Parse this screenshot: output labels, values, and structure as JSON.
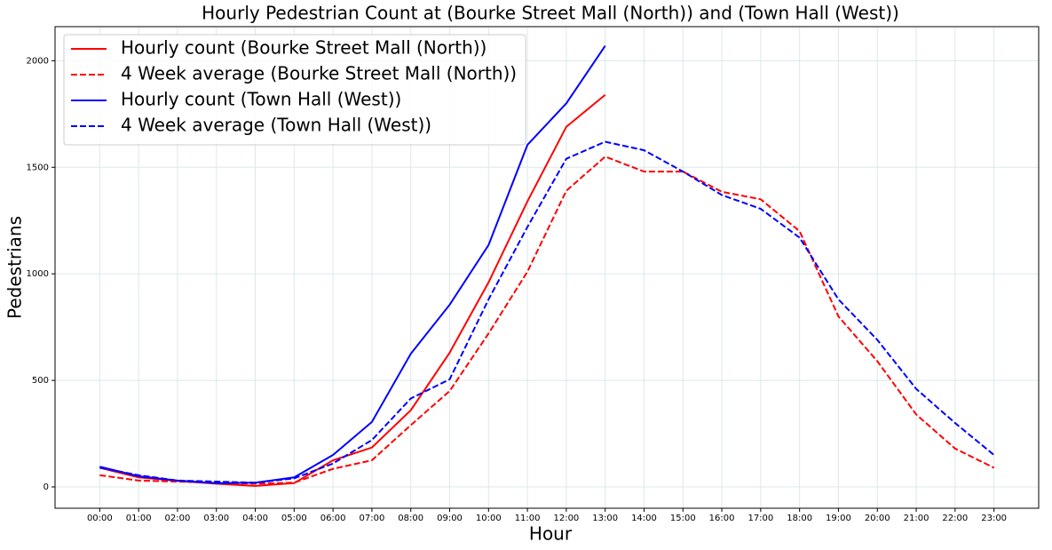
{
  "chart_data": {
    "type": "line",
    "title": "Hourly Pedestrian Count at (Bourke Street Mall (North)) and (Town Hall (West))",
    "x_label": "Hour",
    "y_label": "Pedestrians",
    "categories": [
      "00:00",
      "01:00",
      "02:00",
      "03:00",
      "04:00",
      "05:00",
      "06:00",
      "07:00",
      "08:00",
      "09:00",
      "10:00",
      "11:00",
      "12:00",
      "13:00",
      "14:00",
      "15:00",
      "16:00",
      "17:00",
      "18:00",
      "19:00",
      "20:00",
      "21:00",
      "22:00",
      "23:00"
    ],
    "series": [
      {
        "name": "Hourly count (Bourke Street Mall (North))",
        "color": "#ff0000",
        "dash": false,
        "values": [
          90,
          45,
          28,
          15,
          5,
          18,
          125,
          185,
          360,
          630,
          960,
          1340,
          1690,
          1840,
          null,
          null,
          null,
          null,
          null,
          null,
          null,
          null,
          null,
          null
        ]
      },
      {
        "name": "4 Week average (Bourke Street Mall (North))",
        "color": "#ff0000",
        "dash": true,
        "values": [
          55,
          30,
          25,
          20,
          15,
          20,
          85,
          125,
          290,
          450,
          720,
          1010,
          1390,
          1550,
          1480,
          1480,
          1385,
          1350,
          1200,
          800,
          590,
          340,
          180,
          90
        ]
      },
      {
        "name": "Hourly count (Town Hall (West))",
        "color": "#0000ff",
        "dash": false,
        "values": [
          95,
          50,
          30,
          18,
          20,
          45,
          150,
          305,
          625,
          855,
          1135,
          1605,
          1800,
          2070,
          null,
          null,
          null,
          null,
          null,
          null,
          null,
          null,
          null,
          null
        ]
      },
      {
        "name": "4 Week average (Town Hall (West))",
        "color": "#0000ff",
        "dash": true,
        "values": [
          90,
          55,
          30,
          25,
          20,
          40,
          110,
          220,
          415,
          505,
          880,
          1220,
          1540,
          1620,
          1580,
          1480,
          1370,
          1305,
          1170,
          880,
          690,
          460,
          300,
          150
        ]
      }
    ],
    "ylim": [
      -100,
      2160
    ],
    "yticks": [
      0,
      500,
      1000,
      1500,
      2000
    ],
    "grid": true,
    "legend": "upper-left"
  }
}
